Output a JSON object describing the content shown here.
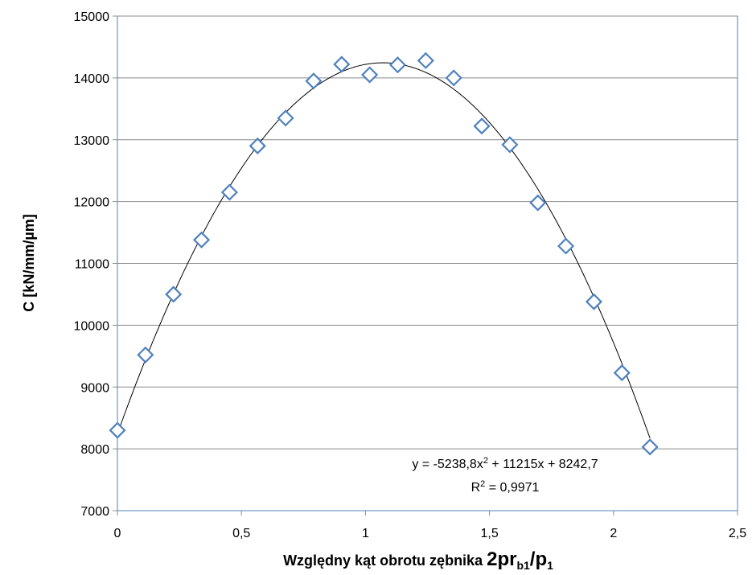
{
  "chart_data": {
    "type": "scatter",
    "title": "",
    "xlabel": {
      "prefix": "Względny kąt obrotu zębnika ",
      "main": "2pr",
      "sub1": "b1",
      "slash": "/p",
      "sub2": "1"
    },
    "ylabel": "C  [kN/mm/µm]",
    "xlim": [
      0,
      2.5
    ],
    "ylim": [
      7000,
      15000
    ],
    "x_ticks": [
      0,
      0.5,
      1,
      1.5,
      2,
      2.5
    ],
    "x_tick_labels": [
      "0",
      "0,5",
      "1",
      "1,5",
      "2",
      "2,5"
    ],
    "y_ticks": [
      7000,
      8000,
      9000,
      10000,
      11000,
      12000,
      13000,
      14000,
      15000
    ],
    "y_tick_labels": [
      "7000",
      "8000",
      "9000",
      "10000",
      "11000",
      "12000",
      "13000",
      "14000",
      "15000"
    ],
    "grid": "horizontal",
    "marker": "diamond-open",
    "marker_color": "#4f81bd",
    "trendline_color": "#000000",
    "points": [
      {
        "x": 0.0,
        "y": 8300
      },
      {
        "x": 0.113,
        "y": 9520
      },
      {
        "x": 0.226,
        "y": 10500
      },
      {
        "x": 0.339,
        "y": 11380
      },
      {
        "x": 0.452,
        "y": 12150
      },
      {
        "x": 0.565,
        "y": 12900
      },
      {
        "x": 0.678,
        "y": 13350
      },
      {
        "x": 0.791,
        "y": 13950
      },
      {
        "x": 0.904,
        "y": 14220
      },
      {
        "x": 1.017,
        "y": 14050
      },
      {
        "x": 1.13,
        "y": 14210
      },
      {
        "x": 1.243,
        "y": 14280
      },
      {
        "x": 1.356,
        "y": 14000
      },
      {
        "x": 1.469,
        "y": 13220
      },
      {
        "x": 1.582,
        "y": 12920
      },
      {
        "x": 1.695,
        "y": 11980
      },
      {
        "x": 1.808,
        "y": 11280
      },
      {
        "x": 1.921,
        "y": 10380
      },
      {
        "x": 2.034,
        "y": 9230
      },
      {
        "x": 2.147,
        "y": 8030
      }
    ],
    "trendline": {
      "type": "polynomial",
      "coefficients": [
        -5238.8,
        11215,
        8242.7
      ],
      "x_range": [
        0,
        2.147
      ],
      "equation_label": {
        "text1": "y = -5238,8x",
        "sup": "2",
        "text2": " + 11215x + 8242,7"
      },
      "r2_label": {
        "text1": "R",
        "sup": "2",
        "text2": " = 0,9971"
      }
    }
  }
}
